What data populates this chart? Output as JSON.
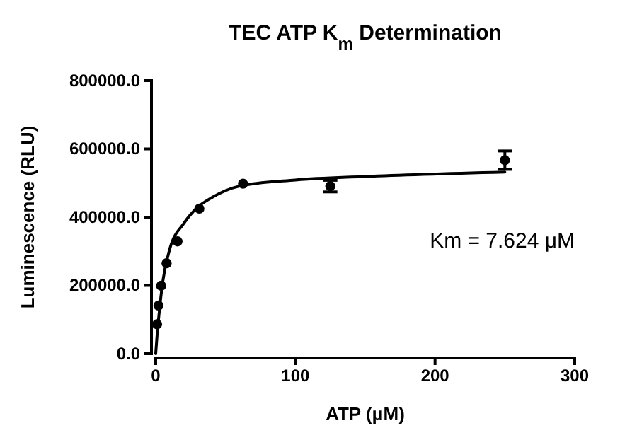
{
  "chart_data": {
    "type": "scatter",
    "title": "TEC ATP K$_{m}$ Determination",
    "xlabel": "ATP (μM)",
    "ylabel": "Luminescence (RLU)",
    "xlim": [
      0,
      300
    ],
    "xticks": [
      0,
      100,
      200,
      300
    ],
    "ylim": [
      0,
      800000
    ],
    "yticks": [
      {
        "value": 0,
        "label": "0.0"
      },
      {
        "value": 200000,
        "label": "200000.0"
      },
      {
        "value": 400000,
        "label": "400000.0"
      },
      {
        "value": 600000,
        "label": "600000.0"
      },
      {
        "value": 800000,
        "label": "800000.0"
      }
    ],
    "grid": false,
    "marker": "circle",
    "series": [
      {
        "color": "#000000",
        "x": [
          0.98,
          1.95,
          3.9,
          7.8,
          15.6,
          31.25,
          62.5,
          125,
          250
        ],
        "values": [
          86000,
          141000,
          199000,
          265000,
          329000,
          425000,
          498000,
          491000,
          567000
        ],
        "errors": [
          null,
          null,
          null,
          null,
          null,
          null,
          null,
          17000,
          27000
        ]
      },
      {
        "type": "line",
        "color": "#000000",
        "marker": "none",
        "line_style": "solid",
        "x": [
          0,
          1,
          2,
          5,
          10,
          20,
          30,
          40,
          60,
          100,
          150,
          250
        ],
        "values": [
          0,
          55000,
          100000,
          210000,
          306000,
          381000,
          429000,
          457000,
          491000,
          509000,
          519000,
          532000
        ]
      }
    ],
    "annotations": [
      "Km = 7.624 μM"
    ]
  }
}
